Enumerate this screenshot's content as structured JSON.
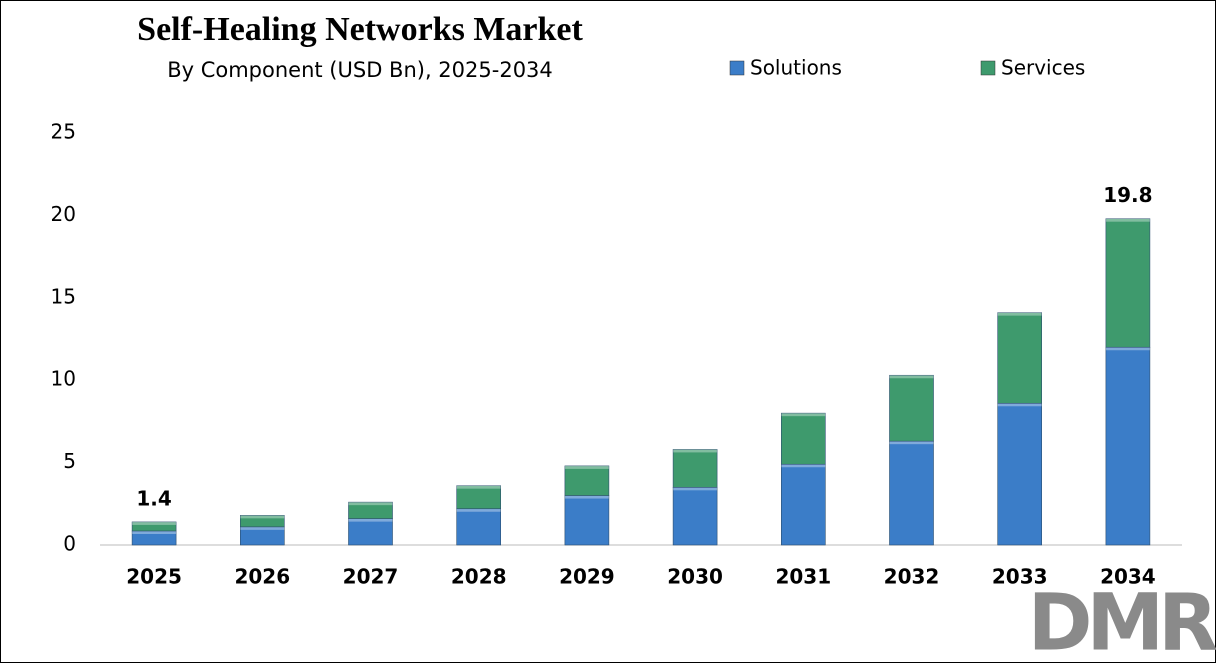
{
  "chart_data": {
    "type": "stacked_bar",
    "title": "Self-Healing Networks Market",
    "subtitle": "By Component (USD Bn), 2025-2034",
    "categories": [
      "2025",
      "2026",
      "2027",
      "2028",
      "2029",
      "2030",
      "2031",
      "2032",
      "2033",
      "2034"
    ],
    "series": [
      {
        "name": "Solutions",
        "color": "#3b7dc8",
        "values": [
          0.85,
          1.1,
          1.6,
          2.2,
          3.0,
          3.5,
          4.9,
          6.3,
          8.6,
          12.0
        ]
      },
      {
        "name": "Services",
        "color": "#3e9a6d",
        "values": [
          0.55,
          0.7,
          1.0,
          1.4,
          1.8,
          2.3,
          3.1,
          4.0,
          5.5,
          7.8
        ]
      }
    ],
    "totals": [
      1.4,
      null,
      null,
      null,
      null,
      null,
      null,
      null,
      null,
      19.8
    ],
    "ylim": [
      0,
      25
    ],
    "yticks": [
      0,
      5,
      10,
      15,
      20,
      25
    ],
    "grid": false,
    "legend": "top",
    "logo": "DMR"
  }
}
